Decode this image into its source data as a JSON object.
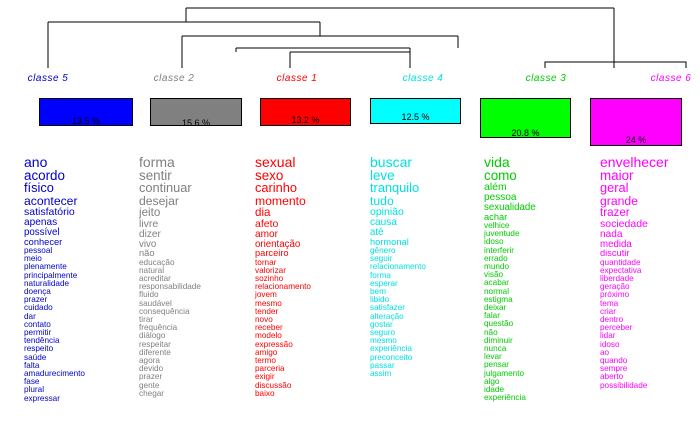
{
  "classes": [
    {
      "label": "classe 5",
      "percent": "13.5 %",
      "color": "#0000ff",
      "label_color": "#0000cc",
      "words": [
        "ano",
        "acordo",
        "físico",
        "acontecer",
        "satisfatório",
        "apenas",
        "possível",
        "conhecer",
        "pessoal",
        "meio",
        "plenamente",
        "principalmente",
        "naturalidade",
        "doença",
        "prazer",
        "cuidado",
        "dar",
        "contato",
        "permitir",
        "tendência",
        "respeito",
        "saúde",
        "falta",
        "amadurecimento",
        "fase",
        "plural",
        "expressar"
      ]
    },
    {
      "label": "classe 2",
      "percent": "15.6 %",
      "color": "#808080",
      "label_color": "#808080",
      "words": [
        "forma",
        "sentir",
        "continuar",
        "desejar",
        "jeito",
        "livre",
        "dizer",
        "vivo",
        "não",
        "educação",
        "natural",
        "acreditar",
        "responsabilidade",
        "fluido",
        "saudável",
        "consequência",
        "tirar",
        "frequência",
        "diálogo",
        "respeitar",
        "diferente",
        "agora",
        "devido",
        "prazer",
        "gente",
        "chegar"
      ]
    },
    {
      "label": "classe 1",
      "percent": "13.2 %",
      "color": "#ff0000",
      "label_color": "#ff0000",
      "words": [
        "sexual",
        "sexo",
        "carinho",
        "momento",
        "dia",
        "afeto",
        "amor",
        "orientação",
        "parceiro",
        "tornar",
        "valorizar",
        "sozinho",
        "relacionamento",
        "jovem",
        "mesmo",
        "tender",
        "novo",
        "receber",
        "modelo",
        "expressão",
        "amigo",
        "termo",
        "parceria",
        "exigir",
        "discussão",
        "baixo"
      ]
    },
    {
      "label": "classe 4",
      "percent": "12.5 %",
      "color": "#00ffff",
      "label_color": "#00e0e0",
      "words": [
        "buscar",
        "leve",
        "tranquilo",
        "tudo",
        "opinião",
        "causa",
        "até",
        "hormonal",
        "gênero",
        "seguir",
        "relacionamento",
        "forma",
        "esperar",
        "bem",
        "libido",
        "satisfazer",
        "alteração",
        "gostar",
        "seguro",
        "mesmo",
        "experiência",
        "preconceito",
        "passar",
        "assim"
      ]
    },
    {
      "label": "classe 3",
      "percent": "20.8 %",
      "color": "#00ff00",
      "label_color": "#00cc00",
      "words": [
        "vida",
        "como",
        "além",
        "pessoa",
        "sexualidade",
        "achar",
        "velhice",
        "juventude",
        "idoso",
        "interferir",
        "errado",
        "mundo",
        "visão",
        "acabar",
        "normal",
        "estigma",
        "deixar",
        "falar",
        "questão",
        "não",
        "diminuir",
        "nunca",
        "levar",
        "pensar",
        "julgamento",
        "algo",
        "idade",
        "experiência"
      ]
    },
    {
      "label": "classe 6",
      "percent": "24 %",
      "color": "#ff00ff",
      "label_color": "#ff00ff",
      "words": [
        "envelhecer",
        "maior",
        "geral",
        "grande",
        "trazer",
        "sociedade",
        "nada",
        "medida",
        "discutir",
        "quantidade",
        "expectativa",
        "liberdade",
        "geração",
        "próximo",
        "tema",
        "criar",
        "dentro",
        "perceber",
        "lidar",
        "idoso",
        "ao",
        "quando",
        "sempre",
        "aberto",
        "possibilidade"
      ]
    }
  ]
}
